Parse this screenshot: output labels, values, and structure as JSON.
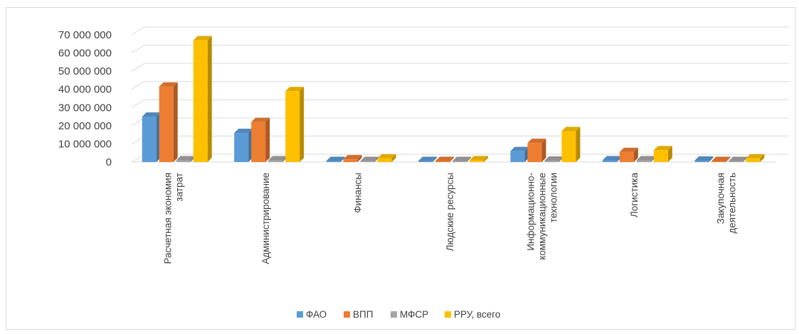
{
  "chart_data": {
    "type": "bar",
    "title": "",
    "xlabel": "",
    "ylabel": "",
    "ylim": [
      0,
      70000000
    ],
    "grid": true,
    "legend_position": "bottom",
    "y_tick_values": [
      0,
      10000000,
      20000000,
      30000000,
      40000000,
      50000000,
      60000000,
      70000000
    ],
    "y_tick_labels": [
      "0",
      "10 000 000",
      "20 000 000",
      "30 000 000",
      "40 000 000",
      "50 000 000",
      "60 000 000",
      "70 000 000"
    ],
    "categories": [
      [
        "Расчетная экономия",
        "затрат"
      ],
      [
        "Администрирование"
      ],
      [
        "Финансы"
      ],
      [
        "Людские ресурсы"
      ],
      [
        "Информационно-",
        "коммуникационные",
        "технологии"
      ],
      [
        "Логистика"
      ],
      [
        "Закупочная",
        "деятельность"
      ]
    ],
    "series": [
      {
        "name": "ФАО",
        "color": "#5b9bd5",
        "values": [
          25000000,
          16000000,
          300000,
          300000,
          6000000,
          1000000,
          800000
        ]
      },
      {
        "name": "ВПП",
        "color": "#ed7d31",
        "values": [
          41500000,
          22000000,
          1500000,
          500000,
          10500000,
          5500000,
          500000
        ]
      },
      {
        "name": "МФСР",
        "color": "#a5a5a5",
        "values": [
          1000000,
          1000000,
          300000,
          300000,
          800000,
          1000000,
          300000
        ]
      },
      {
        "name": "РРУ, всего",
        "color": "#ffc000",
        "values": [
          67000000,
          39000000,
          2000000,
          1000000,
          17000000,
          6500000,
          2000000
        ]
      }
    ]
  }
}
